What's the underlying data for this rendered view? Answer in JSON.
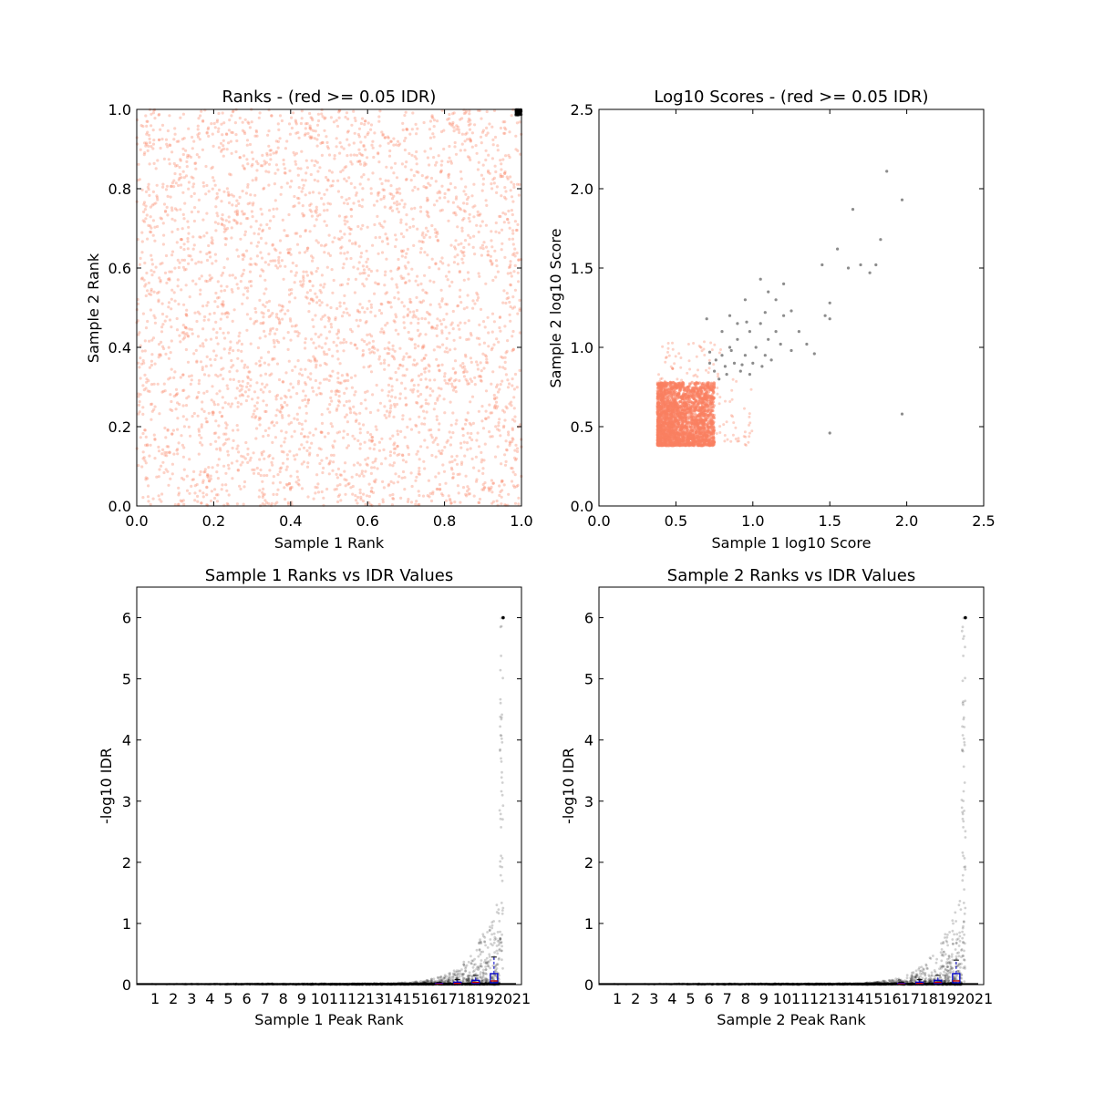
{
  "colors": {
    "pass": "#000000",
    "fail": "#fa8060",
    "box": "#0000cc",
    "median": "#cc0000"
  },
  "chart_data": [
    {
      "id": "ranks",
      "type": "scatter",
      "title": "Ranks - (red >= 0.05 IDR)",
      "xlabel": "Sample 1 Rank",
      "ylabel": "Sample 2 Rank",
      "xlim": [
        0,
        1
      ],
      "ylim": [
        0,
        1
      ],
      "xticks": [
        "0.0",
        "0.2",
        "0.4",
        "0.6",
        "0.8",
        "1.0"
      ],
      "yticks": [
        "0.0",
        "0.2",
        "0.4",
        "0.6",
        "0.8",
        "1.0"
      ],
      "series": [
        {
          "role": "fail",
          "x_range": [
            0,
            1
          ],
          "y_range": [
            0,
            1
          ],
          "points": 4200
        },
        {
          "role": "pass",
          "x_range": [
            0.985,
            1
          ],
          "y_range": [
            0.985,
            1
          ],
          "points": 60
        }
      ]
    },
    {
      "id": "scores",
      "type": "scatter",
      "title": "Log10 Scores - (red >= 0.05 IDR)",
      "xlabel": "Sample 1 log10 Score",
      "ylabel": "Sample 2 log10 Score",
      "xlim": [
        0,
        2.5
      ],
      "ylim": [
        0,
        2.5
      ],
      "xticks": [
        "0.0",
        "0.5",
        "1.0",
        "1.5",
        "2.0",
        "2.5"
      ],
      "yticks": [
        "0.0",
        "0.5",
        "1.0",
        "1.5",
        "2.0",
        "2.5"
      ],
      "series": [
        {
          "role": "fail",
          "x_range": [
            0.38,
            0.75
          ],
          "y_range": [
            0.38,
            0.78
          ],
          "points": 2600
        },
        {
          "role": "fail_sparse",
          "x_range": [
            0.38,
            1.0
          ],
          "y_range": [
            0.38,
            1.05
          ],
          "points": 180
        },
        {
          "role": "pass",
          "points_xy": [
            [
              0.72,
              0.9
            ],
            [
              0.75,
              0.85
            ],
            [
              0.78,
              0.8
            ],
            [
              0.8,
              0.95
            ],
            [
              0.82,
              0.88
            ],
            [
              0.85,
              1.0
            ],
            [
              0.88,
              0.9
            ],
            [
              0.9,
              1.05
            ],
            [
              0.92,
              0.85
            ],
            [
              0.95,
              0.95
            ],
            [
              0.98,
              1.1
            ],
            [
              1.0,
              0.9
            ],
            [
              1.02,
              1.0
            ],
            [
              1.05,
              1.15
            ],
            [
              1.08,
              0.95
            ],
            [
              1.1,
              1.05
            ],
            [
              1.12,
              0.92
            ],
            [
              1.15,
              1.1
            ],
            [
              1.18,
              1.02
            ],
            [
              1.2,
              1.2
            ],
            [
              1.25,
              1.23
            ],
            [
              0.8,
              1.1
            ],
            [
              0.85,
              1.2
            ],
            [
              0.9,
              1.15
            ],
            [
              0.95,
              1.3
            ],
            [
              1.05,
              1.43
            ],
            [
              1.15,
              1.3
            ],
            [
              1.2,
              1.4
            ],
            [
              1.3,
              1.1
            ],
            [
              1.35,
              1.02
            ],
            [
              1.4,
              0.96
            ],
            [
              1.25,
              0.98
            ],
            [
              1.45,
              1.52
            ],
            [
              1.5,
              1.28
            ],
            [
              1.55,
              1.62
            ],
            [
              1.62,
              1.5
            ],
            [
              1.65,
              1.87
            ],
            [
              1.7,
              1.52
            ],
            [
              1.76,
              1.47
            ],
            [
              1.8,
              1.52
            ],
            [
              1.83,
              1.68
            ],
            [
              1.87,
              2.11
            ],
            [
              1.97,
              1.93
            ],
            [
              1.97,
              0.58
            ],
            [
              1.5,
              0.46
            ],
            [
              1.47,
              1.2
            ],
            [
              1.5,
              1.18
            ],
            [
              0.86,
              0.98
            ],
            [
              0.93,
              0.89
            ],
            [
              0.98,
              0.83
            ],
            [
              1.06,
              0.88
            ],
            [
              0.76,
              0.92
            ],
            [
              0.83,
              0.83
            ],
            [
              1.1,
              1.35
            ],
            [
              0.7,
              1.18
            ],
            [
              0.72,
              0.97
            ],
            [
              1.08,
              1.22
            ],
            [
              0.96,
              1.16
            ]
          ]
        }
      ]
    },
    {
      "id": "s1-idr",
      "type": "scatter",
      "title": "Sample 1 Ranks vs IDR Values",
      "xlabel": "Sample 1 Peak Rank",
      "ylabel": "-log10 IDR",
      "ylim": [
        0,
        6.5
      ],
      "yticks": [
        "0",
        "1",
        "2",
        "3",
        "4",
        "5",
        "6"
      ],
      "xticks": [
        "1",
        "2",
        "3",
        "4",
        "5",
        "6",
        "7",
        "8",
        "9",
        "10",
        "11",
        "12",
        "13",
        "14",
        "15",
        "16",
        "17",
        "18",
        "19",
        "20",
        "21"
      ],
      "boxes": [
        {
          "bin": 17,
          "q1": 0.005,
          "median": 0.01,
          "q3": 0.02,
          "whisker_hi": 0.04
        },
        {
          "bin": 18,
          "q1": 0.01,
          "median": 0.02,
          "q3": 0.04,
          "whisker_hi": 0.08
        },
        {
          "bin": 19,
          "q1": 0.02,
          "median": 0.035,
          "q3": 0.07,
          "whisker_hi": 0.15
        },
        {
          "bin": 20,
          "q1": 0.03,
          "median": 0.06,
          "q3": 0.18,
          "whisker_hi": 0.45
        }
      ],
      "max_point": {
        "x": 20,
        "y": 6.0
      }
    },
    {
      "id": "s2-idr",
      "type": "scatter",
      "title": "Sample 2 Ranks vs IDR Values",
      "xlabel": "Sample 2 Peak Rank",
      "ylabel": "-log10 IDR",
      "ylim": [
        0,
        6.5
      ],
      "yticks": [
        "0",
        "1",
        "2",
        "3",
        "4",
        "5",
        "6"
      ],
      "xticks": [
        "1",
        "2",
        "3",
        "4",
        "5",
        "6",
        "7",
        "8",
        "9",
        "10",
        "11",
        "12",
        "13",
        "14",
        "15",
        "16",
        "17",
        "18",
        "19",
        "20",
        "21"
      ],
      "boxes": [
        {
          "bin": 17,
          "q1": 0.005,
          "median": 0.01,
          "q3": 0.02,
          "whisker_hi": 0.04
        },
        {
          "bin": 18,
          "q1": 0.01,
          "median": 0.02,
          "q3": 0.04,
          "whisker_hi": 0.08
        },
        {
          "bin": 19,
          "q1": 0.02,
          "median": 0.035,
          "q3": 0.07,
          "whisker_hi": 0.15
        },
        {
          "bin": 20,
          "q1": 0.03,
          "median": 0.06,
          "q3": 0.18,
          "whisker_hi": 0.4
        }
      ],
      "max_point": {
        "x": 20,
        "y": 6.0
      }
    }
  ]
}
